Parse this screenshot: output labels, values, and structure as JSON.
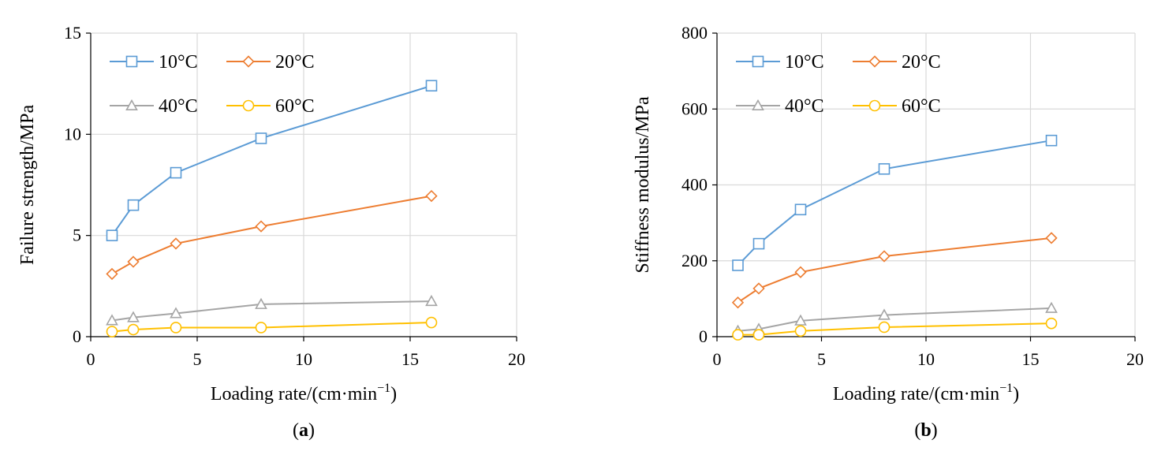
{
  "series_styles": [
    {
      "name": "10°C",
      "color": "#5B9BD5",
      "marker": "square"
    },
    {
      "name": "20°C",
      "color": "#ED7D31",
      "marker": "diamond"
    },
    {
      "name": "40°C",
      "color": "#A5A5A5",
      "marker": "triangle"
    },
    {
      "name": "60°C",
      "color": "#FFC000",
      "marker": "circle"
    }
  ],
  "chart_data": [
    {
      "type": "line",
      "panel": "a",
      "caption_open": "(",
      "caption_letter": "a",
      "caption_close": ")",
      "xlabel_base": "Loading rate/(cm·min",
      "xlabel_sup": "−1",
      "xlabel_close": ")",
      "ylabel": "Failure strength/MPa",
      "xlim": [
        0,
        20
      ],
      "ylim": [
        0,
        15
      ],
      "xticks": [
        0,
        5,
        10,
        15,
        20
      ],
      "yticks": [
        0,
        5,
        10,
        15
      ],
      "x": [
        1,
        2,
        4,
        8,
        16
      ],
      "series": [
        {
          "name": "10°C",
          "values": [
            5.0,
            6.5,
            8.1,
            9.8,
            12.4
          ]
        },
        {
          "name": "20°C",
          "values": [
            3.1,
            3.7,
            4.6,
            5.45,
            6.95
          ]
        },
        {
          "name": "40°C",
          "values": [
            0.8,
            0.95,
            1.15,
            1.6,
            1.75
          ]
        },
        {
          "name": "60°C",
          "values": [
            0.25,
            0.35,
            0.45,
            0.45,
            0.7
          ]
        }
      ],
      "legend": "top-left",
      "grid": true
    },
    {
      "type": "line",
      "panel": "b",
      "caption_open": "(",
      "caption_letter": "b",
      "caption_close": ")",
      "xlabel_base": "Loading rate/(cm·min",
      "xlabel_sup": "−1",
      "xlabel_close": ")",
      "ylabel": "Stiffness modulus/MPa",
      "xlim": [
        0,
        20
      ],
      "ylim": [
        0,
        800
      ],
      "xticks": [
        0,
        5,
        10,
        15,
        20
      ],
      "yticks": [
        0,
        200,
        400,
        600,
        800
      ],
      "x": [
        1,
        2,
        4,
        8,
        16
      ],
      "series": [
        {
          "name": "10°C",
          "values": [
            188,
            245,
            335,
            442,
            517
          ]
        },
        {
          "name": "20°C",
          "values": [
            90,
            127,
            170,
            212,
            260
          ]
        },
        {
          "name": "40°C",
          "values": [
            15,
            20,
            42,
            57,
            75
          ]
        },
        {
          "name": "60°C",
          "values": [
            5,
            5,
            15,
            25,
            35
          ]
        }
      ],
      "legend": "top-left",
      "grid": true
    }
  ]
}
